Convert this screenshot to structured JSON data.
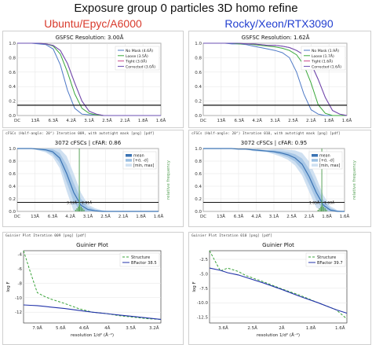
{
  "title": "Exposure group 0 particles 3D homo refine",
  "columns": [
    {
      "heading": "Ubuntu/Epyc/A6000",
      "gsfsc": {
        "title": "GSFSC Resolution: 3.00Å",
        "x_ticks": [
          "DC",
          "13Å",
          "6.3Å",
          "4.2Å",
          "3.1Å",
          "2.5Å",
          "2.1Å",
          "1.8Å",
          "1.6Å"
        ],
        "y_ticks": [
          "0.0",
          "0.2",
          "0.4",
          "0.6",
          "0.8",
          "1.0"
        ],
        "legend": [
          "No Mask (4.6Å)",
          "Loose (3.5Å)",
          "Tight (3.0Å)",
          "Corrected (3.0Å)"
        ]
      },
      "cfsc": {
        "header": "cFSCs (Half-angle: 20°) Iteration 009, with autotight mask [png] [pdf]",
        "title": "3072 cFSCs | cFAR: 0.86",
        "x_ticks": [
          "DC",
          "13Å",
          "6.3Å",
          "4.2Å",
          "3.1Å",
          "2.5Å",
          "2.1Å",
          "1.8Å",
          "1.6Å"
        ],
        "y_ticks": [
          "0.0",
          "0.2",
          "0.4",
          "0.6",
          "0.8",
          "1.0"
        ],
        "y2_label": "relative frequency",
        "legend": [
          "mean",
          "[+σ, -σ]",
          "[min, max]"
        ],
        "annotations": [
          "3.12Å",
          "2.91Å"
        ]
      },
      "guinier": {
        "header": "Guinier Plot Iteration 009 [png] [pdf]",
        "title": "Guinier Plot",
        "x_ticks": [
          "7.9Å",
          "5.6Å",
          "4.6Å",
          "4Å",
          "3.5Å",
          "3.2Å"
        ],
        "y_ticks": [
          "-4",
          "-6",
          "-8",
          "-10",
          "-12"
        ],
        "ylabel": "log F",
        "xlabel": "resolution 1/d² (Å⁻²)",
        "legend": [
          "Structure",
          "BFactor 38.5"
        ]
      }
    },
    {
      "heading": "Rocky/Xeon/RTX3090",
      "gsfsc": {
        "title": "GSFSC Resolution: 1.62Å",
        "x_ticks": [
          "DC",
          "13Å",
          "6.3Å",
          "4.2Å",
          "3.1Å",
          "2.5Å",
          "2.1Å",
          "1.8Å",
          "1.6Å"
        ],
        "y_ticks": [
          "0.0",
          "0.2",
          "0.4",
          "0.6",
          "0.8",
          "1.0"
        ],
        "legend": [
          "No Mask (1.9Å)",
          "Loose (1.7Å)",
          "Tight (1.6Å)",
          "Corrected (1.6Å)"
        ]
      },
      "cfsc": {
        "header": "cFSCs (Half-angle: 20°) Iteration 010, with autotight mask [png] [pdf]",
        "title": "3072 cFSCs | cFAR: 0.95",
        "x_ticks": [
          "DC",
          "13Å",
          "6.3Å",
          "4.2Å",
          "3.1Å",
          "2.5Å",
          "2.1Å",
          "1.8Å",
          "1.6Å"
        ],
        "y_ticks": [
          "0.0",
          "0.2",
          "0.4",
          "0.6",
          "0.8",
          "1.0"
        ],
        "y2_label": "relative frequency",
        "legend": [
          "mean",
          "[+σ, -σ]",
          "[min, max]"
        ],
        "annotations": [
          "1.65Å",
          "1.60Å"
        ]
      },
      "guinier": {
        "header": "Guinier Plot Iteration 010 [png] [pdf]",
        "title": "Guinier Plot",
        "x_ticks": [
          "3.6Å",
          "2.5Å",
          "2Å",
          "1.8Å",
          "1.6Å"
        ],
        "y_ticks": [
          "-2.5",
          "-5.0",
          "-7.5",
          "-10.0",
          "-12.5"
        ],
        "ylabel": "log F",
        "xlabel": "resolution 1/d² (Å⁻²)",
        "legend": [
          "Structure",
          "BFactor 39.7"
        ]
      }
    }
  ],
  "colors": {
    "no_mask": "#4e79c6",
    "loose": "#3aa83a",
    "tight": "#c94b8c",
    "corrected": "#6b4fb3",
    "threshold": "#111111",
    "cfsc_mean": "#3c74b4",
    "cfsc_band": "#9dc1e3",
    "hist": "#5aa35a",
    "structure": "#3aa33a",
    "bfactor": "#2233aa",
    "heading_left": "#d83a2c",
    "heading_right": "#2340d0"
  },
  "chart_data": [
    {
      "type": "line",
      "title": "GSFSC Resolution: 3.00Å",
      "ylim": [
        0,
        1
      ],
      "threshold": 0.143,
      "x": [
        0,
        0.05,
        0.1,
        0.15,
        0.2,
        0.25,
        0.3,
        0.35,
        0.4,
        0.45,
        0.5,
        0.55,
        0.6,
        0.65,
        0.7,
        0.75,
        0.8,
        0.85,
        0.9,
        0.95,
        1.0
      ],
      "series": [
        {
          "name": "No Mask (4.6Å)",
          "values": [
            1.0,
            1.0,
            1.0,
            0.99,
            0.98,
            0.92,
            0.7,
            0.35,
            0.1,
            0.02,
            0.01,
            0.01,
            0.0,
            0.0,
            0.0,
            0.0,
            0.0,
            0.0,
            0.0,
            0.0,
            0.0
          ]
        },
        {
          "name": "Loose (3.5Å)",
          "values": [
            1.0,
            1.0,
            1.0,
            1.0,
            0.99,
            0.96,
            0.85,
            0.6,
            0.3,
            0.1,
            0.03,
            0.01,
            0.0,
            0.0,
            0.0,
            0.0,
            0.0,
            0.0,
            0.0,
            0.0,
            0.0
          ]
        },
        {
          "name": "Tight (3.0Å)",
          "values": [
            1.0,
            1.0,
            1.0,
            1.0,
            0.99,
            0.97,
            0.9,
            0.72,
            0.45,
            0.2,
            0.06,
            0.02,
            0.0,
            0.0,
            0.0,
            0.0,
            0.0,
            0.0,
            0.0,
            0.0,
            0.0
          ]
        },
        {
          "name": "Corrected (3.0Å)",
          "values": [
            1.0,
            1.0,
            1.0,
            1.0,
            0.99,
            0.97,
            0.9,
            0.72,
            0.45,
            0.2,
            0.06,
            0.02,
            0.0,
            0.0,
            0.0,
            0.0,
            0.0,
            0.0,
            0.0,
            0.0,
            0.0
          ]
        }
      ]
    },
    {
      "type": "line",
      "title": "GSFSC Resolution: 1.62Å",
      "ylim": [
        0,
        1
      ],
      "threshold": 0.143,
      "x": [
        0,
        0.05,
        0.1,
        0.15,
        0.2,
        0.25,
        0.3,
        0.35,
        0.4,
        0.45,
        0.5,
        0.55,
        0.6,
        0.65,
        0.7,
        0.75,
        0.8,
        0.85,
        0.9,
        0.95,
        1.0
      ],
      "series": [
        {
          "name": "No Mask (1.9Å)",
          "values": [
            1.0,
            1.0,
            1.0,
            1.0,
            0.99,
            0.99,
            0.98,
            0.96,
            0.94,
            0.92,
            0.9,
            0.87,
            0.8,
            0.6,
            0.3,
            0.08,
            0.02,
            0.0,
            0.0,
            0.0,
            0.0
          ]
        },
        {
          "name": "Loose (1.7Å)",
          "values": [
            1.0,
            1.0,
            1.0,
            1.0,
            1.0,
            0.99,
            0.99,
            0.98,
            0.97,
            0.96,
            0.95,
            0.93,
            0.9,
            0.84,
            0.7,
            0.45,
            0.15,
            0.03,
            0.0,
            0.0,
            0.0
          ]
        },
        {
          "name": "Tight (1.6Å)",
          "values": [
            1.0,
            1.0,
            1.0,
            1.0,
            1.0,
            1.0,
            0.99,
            0.99,
            0.98,
            0.97,
            0.97,
            0.96,
            0.94,
            0.9,
            0.84,
            0.72,
            0.5,
            0.25,
            0.07,
            0.02,
            0.0
          ]
        },
        {
          "name": "Corrected (1.6Å)",
          "values": [
            1.0,
            1.0,
            1.0,
            1.0,
            1.0,
            1.0,
            0.99,
            0.99,
            0.98,
            0.97,
            0.97,
            0.96,
            0.94,
            0.9,
            0.84,
            0.72,
            0.5,
            0.25,
            0.07,
            0.02,
            0.0
          ]
        }
      ]
    },
    {
      "type": "line",
      "title": "3072 cFSCs | cFAR: 0.86",
      "ylim": [
        0,
        1
      ],
      "threshold": 0.143,
      "x": [
        0,
        0.05,
        0.1,
        0.15,
        0.2,
        0.25,
        0.3,
        0.35,
        0.4,
        0.45,
        0.5,
        0.55,
        0.6,
        0.65,
        0.7,
        0.75,
        0.8,
        0.85,
        0.9,
        0.95,
        1.0
      ],
      "series": [
        {
          "name": "mean",
          "values": [
            1.0,
            1.0,
            1.0,
            0.99,
            0.98,
            0.95,
            0.85,
            0.6,
            0.3,
            0.1,
            0.03,
            0.01,
            0.0,
            0.0,
            0.0,
            0.0,
            0.0,
            0.0,
            0.0,
            0.0,
            0.0
          ]
        },
        {
          "name": "[+σ, -σ]",
          "values": [
            0.0,
            0.0,
            0.0,
            0.01,
            0.02,
            0.04,
            0.08,
            0.14,
            0.15,
            0.1,
            0.04,
            0.02,
            0.01,
            0.0,
            0.0,
            0.0,
            0.0,
            0.0,
            0.0,
            0.0,
            0.0
          ]
        }
      ]
    },
    {
      "type": "line",
      "title": "3072 cFSCs | cFAR: 0.95",
      "ylim": [
        0,
        1
      ],
      "threshold": 0.143,
      "x": [
        0,
        0.05,
        0.1,
        0.15,
        0.2,
        0.25,
        0.3,
        0.35,
        0.4,
        0.45,
        0.5,
        0.55,
        0.6,
        0.65,
        0.7,
        0.75,
        0.8,
        0.85,
        0.9,
        0.95,
        1.0
      ],
      "series": [
        {
          "name": "mean",
          "values": [
            1.0,
            1.0,
            1.0,
            1.0,
            1.0,
            0.99,
            0.99,
            0.98,
            0.97,
            0.96,
            0.95,
            0.93,
            0.9,
            0.85,
            0.75,
            0.55,
            0.3,
            0.1,
            0.02,
            0.0,
            0.0
          ]
        },
        {
          "name": "[+σ, -σ]",
          "values": [
            0.0,
            0.0,
            0.0,
            0.0,
            0.0,
            0.0,
            0.0,
            0.01,
            0.01,
            0.01,
            0.02,
            0.03,
            0.04,
            0.06,
            0.09,
            0.12,
            0.12,
            0.08,
            0.03,
            0.01,
            0.0
          ]
        }
      ]
    },
    {
      "type": "line",
      "title": "Guinier Plot",
      "ylim": [
        -13.5,
        -3.5
      ],
      "x": [
        0.0,
        0.005,
        0.01,
        0.015,
        0.02,
        0.03,
        0.04,
        0.05,
        0.06,
        0.07,
        0.08,
        0.09,
        0.1
      ],
      "series": [
        {
          "name": "Structure",
          "values": [
            -3.5,
            -6.5,
            -9.3,
            -9.8,
            -10.2,
            -10.8,
            -11.5,
            -12.0,
            -12.2,
            -12.5,
            -12.7,
            -12.9,
            -13.0
          ]
        },
        {
          "name": "BFactor 38.5",
          "values": [
            -11.0,
            -11.05,
            -11.1,
            -11.2,
            -11.3,
            -11.5,
            -11.75,
            -12.0,
            -12.2,
            -12.4,
            -12.6,
            -12.8,
            -13.0
          ]
        }
      ]
    },
    {
      "type": "line",
      "title": "Guinier Plot",
      "ylim": [
        -13.5,
        -1
      ],
      "x": [
        0.0,
        0.03,
        0.05,
        0.08,
        0.1,
        0.15,
        0.2,
        0.25,
        0.3,
        0.35,
        0.38
      ],
      "series": [
        {
          "name": "Structure",
          "values": [
            -1.0,
            -4.5,
            -4.0,
            -4.6,
            -5.3,
            -6.4,
            -7.6,
            -8.7,
            -10.0,
            -11.2,
            -12.8
          ]
        },
        {
          "name": "BFactor 39.7",
          "values": [
            -4.0,
            -4.4,
            -4.8,
            -5.2,
            -5.6,
            -6.6,
            -7.7,
            -8.9,
            -10.0,
            -11.2,
            -11.8
          ]
        }
      ]
    }
  ]
}
